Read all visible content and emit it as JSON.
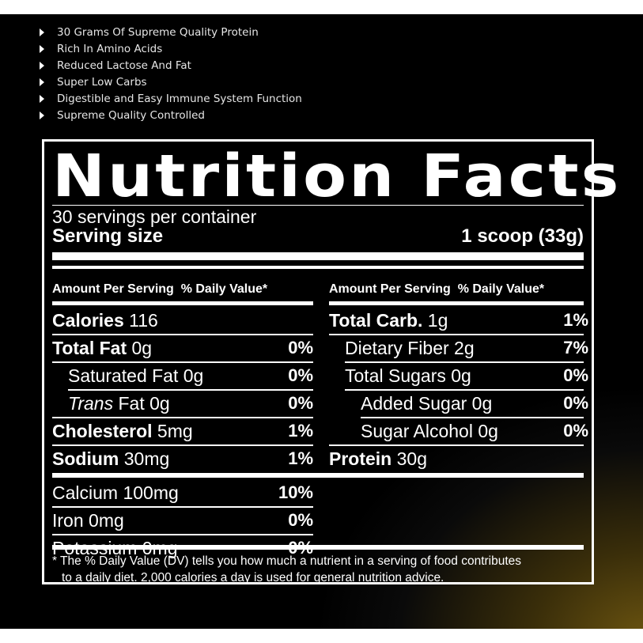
{
  "bullets": [
    "30 Grams Of Supreme Quality Protein",
    "Rich In Amino Acids",
    "Reduced Lactose And Fat",
    "Super Low Carbs",
    "Digestible and Easy Immune System Function",
    "Supreme Quality Controlled"
  ],
  "label": {
    "title": "Nutrition Facts",
    "servings_per_container": "30 servings per container",
    "serving_size_label": "Serving size",
    "serving_size_value": "1 scoop (33g)",
    "col_left_amount": "Amount Per Serving",
    "col_left_dv": "% Daily Value*",
    "col_right_amount": "Amount Per Serving",
    "col_right_dv": "% Daily Value*",
    "left_rows": [
      {
        "name": "Calories",
        "amount": " 116",
        "dv": ""
      },
      {
        "name": "Total Fat",
        "amount": " 0g",
        "dv": "0%"
      },
      {
        "name": "Saturated Fat",
        "amount": " 0g",
        "dv": "0%"
      },
      {
        "name_italic": "Trans",
        "name": " Fat",
        "amount": " 0g",
        "dv": "0%"
      },
      {
        "name": "Cholesterol",
        "amount": " 5mg",
        "dv": "1%"
      },
      {
        "name": "Sodium",
        "amount": " 30mg",
        "dv": "1%"
      }
    ],
    "right_rows": [
      {
        "name": "Total Carb.",
        "amount": " 1g",
        "dv": "1%"
      },
      {
        "name": "Dietary Fiber",
        "amount": " 2g",
        "dv": "7%"
      },
      {
        "name": "Total Sugars",
        "amount": " 0g",
        "dv": "0%"
      },
      {
        "name": "Added Sugar",
        "amount": " 0g",
        "dv": "0%"
      },
      {
        "name": "Sugar Alcohol",
        "amount": " 0g",
        "dv": "0%"
      },
      {
        "name": "Protein",
        "amount": " 30g",
        "dv": ""
      }
    ],
    "minerals": [
      {
        "name": "Calcium 100mg",
        "dv": "10%"
      },
      {
        "name": "Iron 0mg",
        "dv": "0%"
      },
      {
        "name": "Potassium 0mg",
        "dv": "0%"
      }
    ],
    "footnote_line1": "* The % Daily Value (DV) tells you how much a nutrient in a serving of food contributes",
    "footnote_line2": "to a daily diet. 2,000 calories a day is used for general nutrition advice."
  }
}
